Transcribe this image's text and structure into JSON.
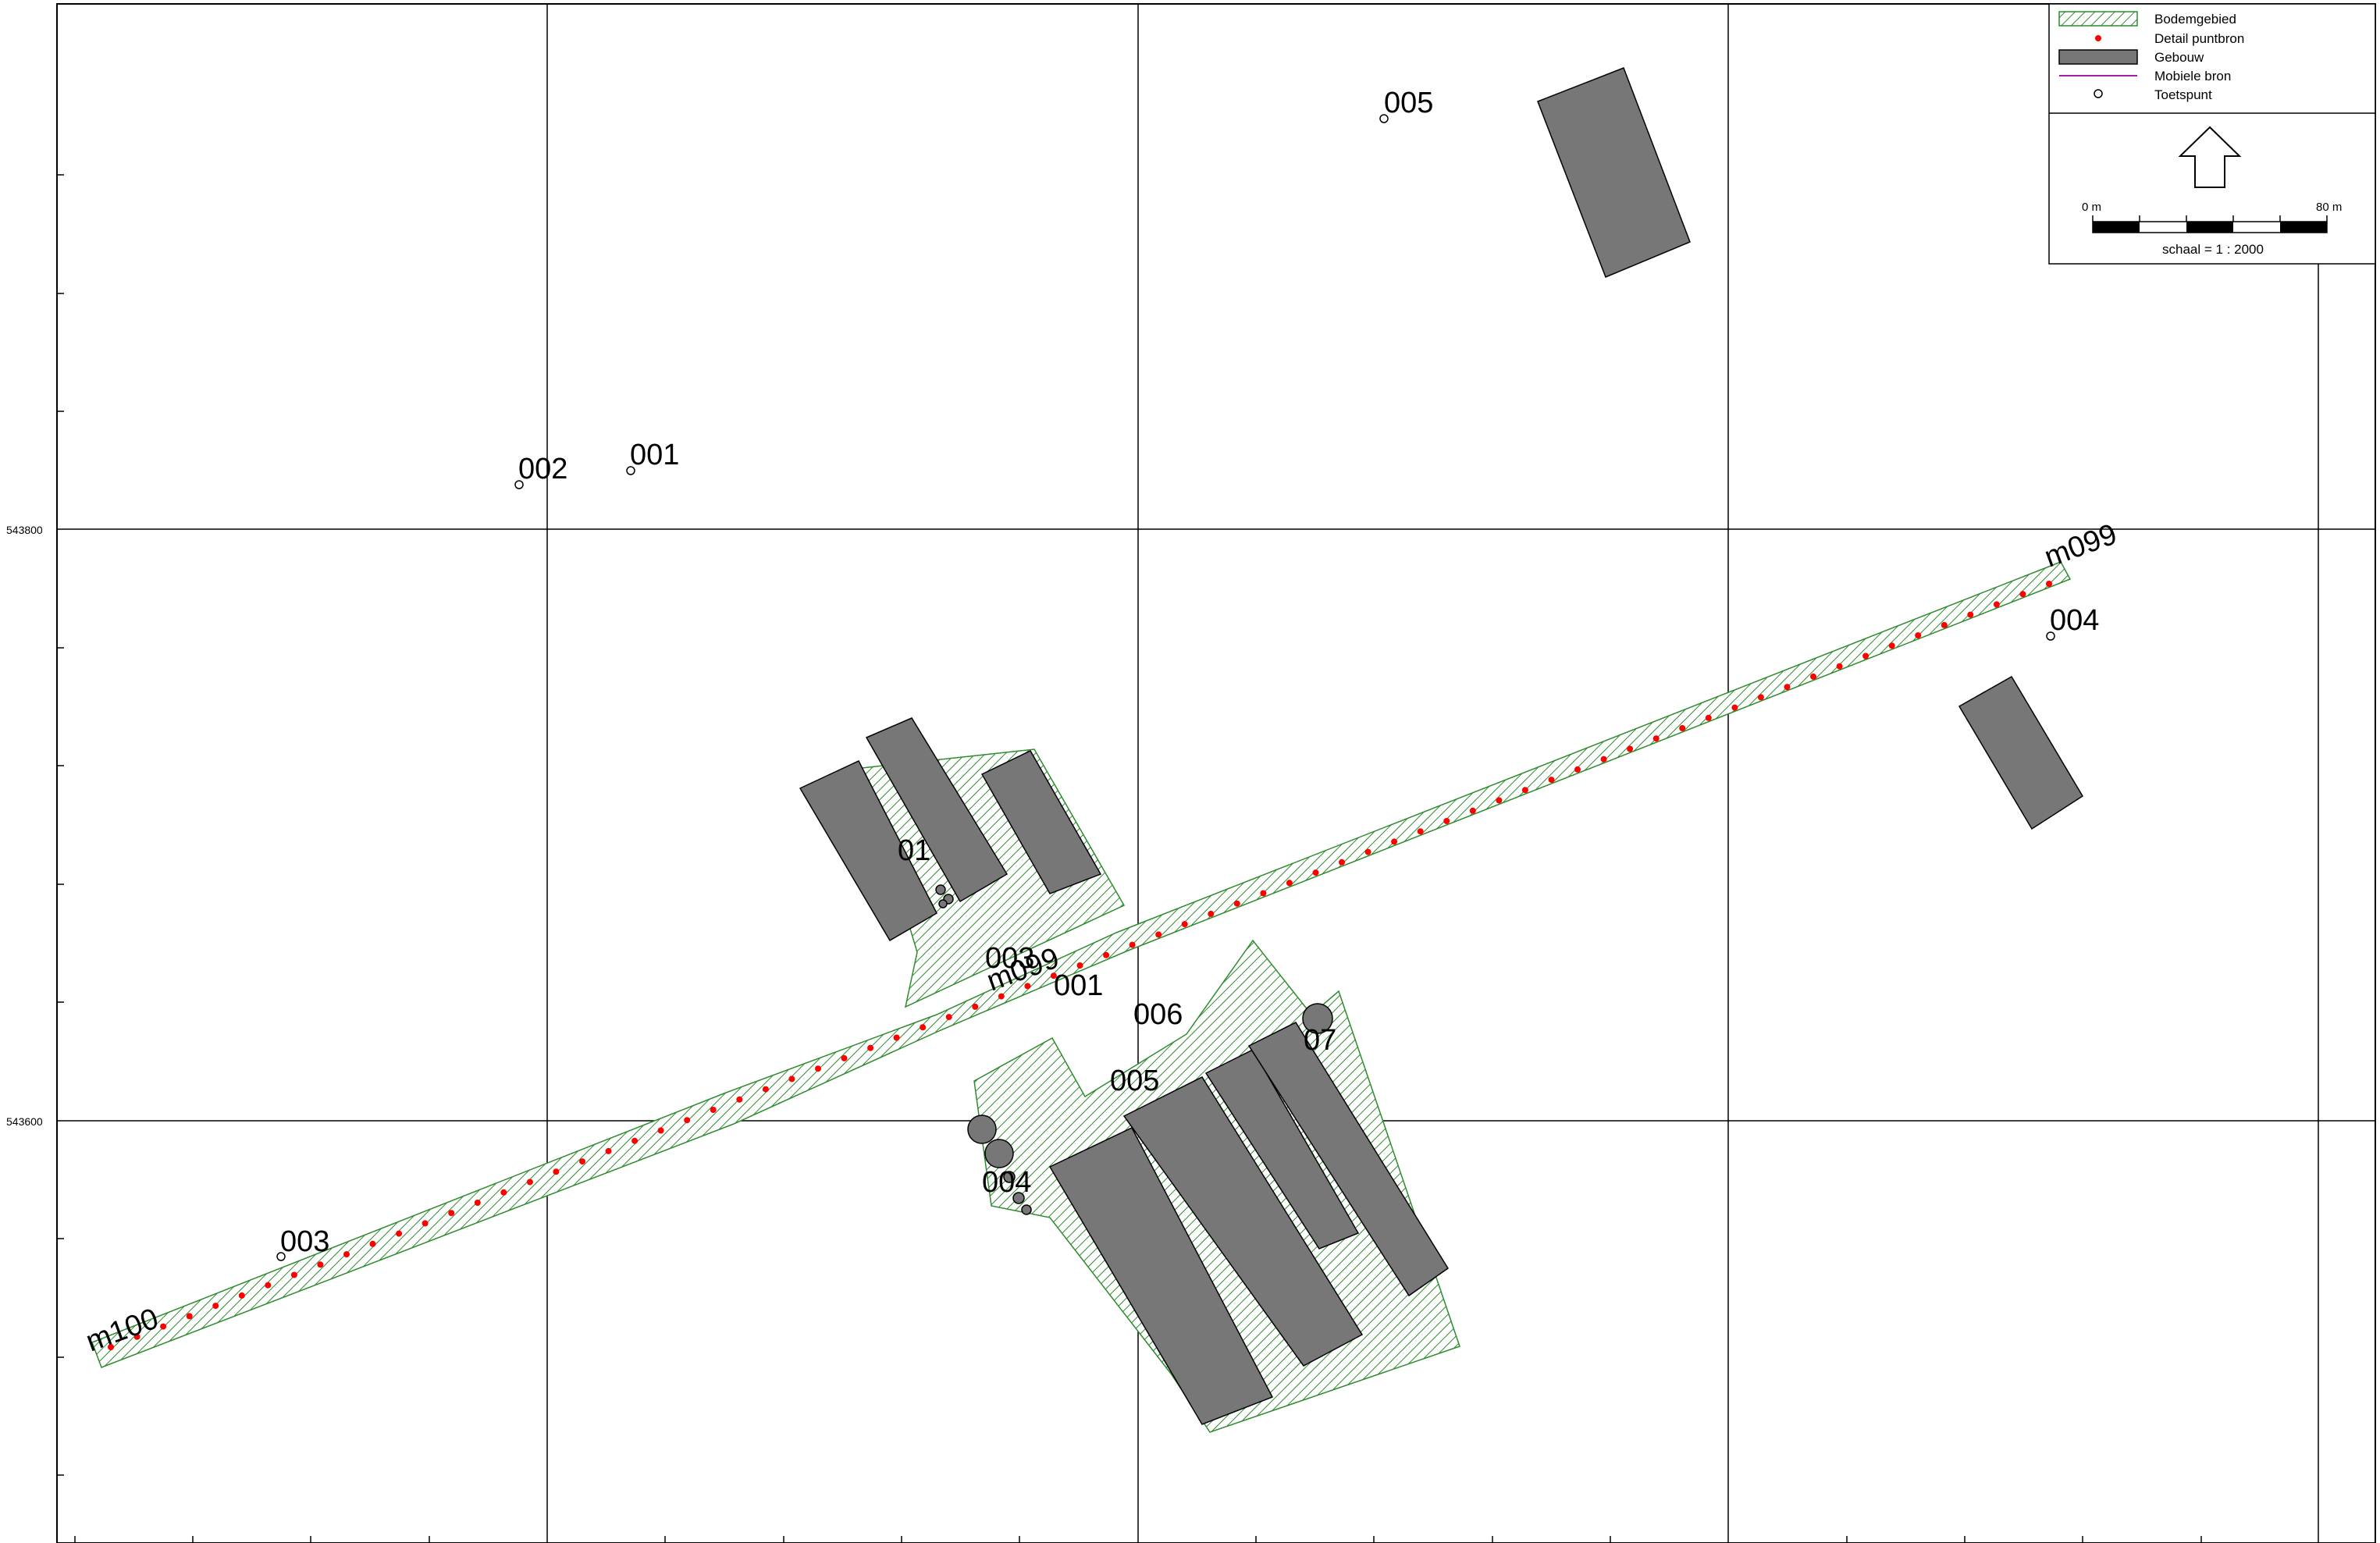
{
  "map": {
    "scale_text": "schaal = 1 : 2000",
    "scalebar": {
      "start_label": "0 m",
      "end_label": "80 m"
    },
    "coordinates": {
      "y_upper": "543800",
      "y_lower": "543600"
    },
    "colors": {
      "hatch": "#2e8b2e",
      "building": "#777777",
      "point_source": "#ff0000",
      "mobile_source": "#a020a0"
    },
    "legend": [
      {
        "symbol": "hatch-area",
        "label": "Bodemgebied"
      },
      {
        "symbol": "red-dot",
        "label": "Detail puntbron"
      },
      {
        "symbol": "gray-rect",
        "label": "Gebouw"
      },
      {
        "symbol": "purple-line",
        "label": "Mobiele bron"
      },
      {
        "symbol": "test-point",
        "label": "Toetspunt"
      }
    ],
    "test_points": [
      "005",
      "002",
      "001",
      "004",
      "003"
    ],
    "source_labels": [
      "m099",
      "m100",
      "m099",
      "001",
      "003",
      "006",
      "005",
      "004",
      "01",
      "07"
    ]
  }
}
